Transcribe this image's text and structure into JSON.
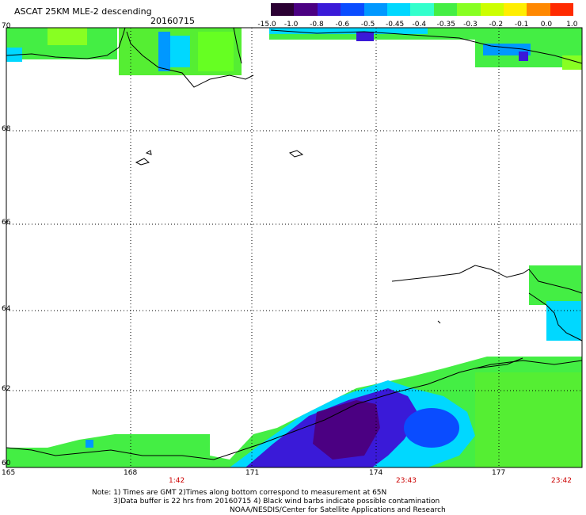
{
  "header": {
    "title": "ASCAT 25KM MLE-2 descending",
    "date": "20160715"
  },
  "colorbar": {
    "labels": [
      "-15.0",
      "-1.0",
      "-0.8",
      "-0.6",
      "-0.5",
      "-0.45",
      "-0.4",
      "-0.35",
      "-0.3",
      "-0.2",
      "-0.1",
      "0.0",
      "1.0"
    ],
    "colors": [
      "#2b0033",
      "#4b0082",
      "#3a1ad8",
      "#0a4cff",
      "#0098ff",
      "#00d8ff",
      "#33ffcc",
      "#44ee44",
      "#88ff22",
      "#ccff00",
      "#ffee00",
      "#ff8800",
      "#ff2a00"
    ]
  },
  "axes": {
    "lat_labels": [
      "70",
      "68",
      "66",
      "64",
      "62",
      "60"
    ],
    "lon_labels": [
      "165",
      "168",
      "171",
      "174",
      "177"
    ],
    "times": [
      "1:42",
      "23:43",
      "23:42"
    ]
  },
  "notes": {
    "line1": "Note: 1) Times are GMT 2)Times along bottom correspond to measurement at 65N",
    "line2": "3)Data buffer is 22 hrs from 20160715 4) Black wind barbs indicate possible contamination",
    "line3": "NOAA/NESDIS/Center for Satellite Applications and Research"
  }
}
